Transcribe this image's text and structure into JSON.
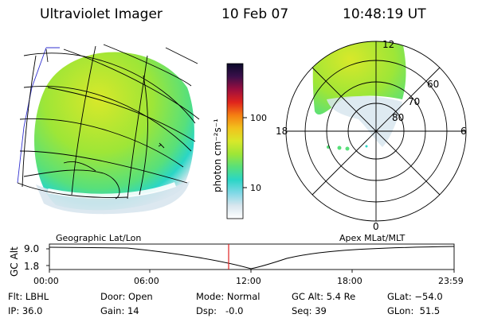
{
  "header": {
    "title": "Ultraviolet Imager",
    "date": "10 Feb 07",
    "time": "10:48:19 UT"
  },
  "colorbar": {
    "unit_label": "photon cm⁻²s⁻¹",
    "tick_labels": [
      "100",
      "10"
    ],
    "colors": [
      "#ffffff",
      "#d8e6ee",
      "#7fd8e6",
      "#2ad6c6",
      "#58e07a",
      "#9ee637",
      "#d8e82a",
      "#f2c21c",
      "#f57f12",
      "#e0241c",
      "#9c0e3e",
      "#3a0f4a",
      "#0a0a2a"
    ]
  },
  "left_panel": {
    "caption": "Geographic Lat/Lon",
    "aurora_colors": [
      "#d8e82a",
      "#9ee637",
      "#58e07a",
      "#2ad6c6",
      "#d8e6ee"
    ]
  },
  "polar_plot": {
    "caption": "Apex MLat/MLT",
    "mlt_labels": {
      "top": "12",
      "left": "18",
      "right": "6",
      "bottom": "0"
    },
    "lat_labels": [
      "60",
      "70",
      "80"
    ]
  },
  "altitude_strip": {
    "axis_label": "GC Alt",
    "y_ticks": [
      "9.0",
      "1.8"
    ],
    "x_ticks": [
      "00:00",
      "06:00",
      "12:00",
      "18:00",
      "23:59"
    ],
    "marker_color": "#e02020"
  },
  "info": {
    "row1": [
      "Flt: LBHL",
      "Door: Open",
      "Mode: Normal",
      "GC Alt: 5.4 Re",
      "GLat: −54.0"
    ],
    "row2": [
      "IP: 36.0",
      "Gain: 14",
      "Dsp:   -0.0",
      "Seq: 39",
      "GLon:  51.5"
    ]
  }
}
